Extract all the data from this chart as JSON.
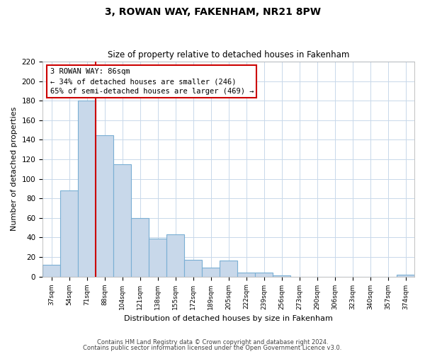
{
  "title": "3, ROWAN WAY, FAKENHAM, NR21 8PW",
  "subtitle": "Size of property relative to detached houses in Fakenham",
  "xlabel": "Distribution of detached houses by size in Fakenham",
  "ylabel": "Number of detached properties",
  "bar_labels": [
    "37sqm",
    "54sqm",
    "71sqm",
    "88sqm",
    "104sqm",
    "121sqm",
    "138sqm",
    "155sqm",
    "172sqm",
    "189sqm",
    "205sqm",
    "222sqm",
    "239sqm",
    "256sqm",
    "273sqm",
    "290sqm",
    "306sqm",
    "323sqm",
    "340sqm",
    "357sqm",
    "374sqm"
  ],
  "bar_values": [
    12,
    88,
    180,
    145,
    115,
    60,
    39,
    43,
    17,
    9,
    16,
    4,
    4,
    1,
    0,
    0,
    0,
    0,
    0,
    0,
    2
  ],
  "bar_color": "#c8d8ea",
  "bar_edge_color": "#7aafd4",
  "ylim": [
    0,
    220
  ],
  "yticks": [
    0,
    20,
    40,
    60,
    80,
    100,
    120,
    140,
    160,
    180,
    200,
    220
  ],
  "vline_x_index": 3,
  "vline_color": "#cc0000",
  "annotation_title": "3 ROWAN WAY: 86sqm",
  "annotation_line1": "← 34% of detached houses are smaller (246)",
  "annotation_line2": "65% of semi-detached houses are larger (469) →",
  "annotation_box_color": "#ffffff",
  "annotation_box_edge": "#cc0000",
  "footer_line1": "Contains HM Land Registry data © Crown copyright and database right 2024.",
  "footer_line2": "Contains public sector information licensed under the Open Government Licence v3.0.",
  "background_color": "#ffffff",
  "grid_color": "#c8d8ea"
}
